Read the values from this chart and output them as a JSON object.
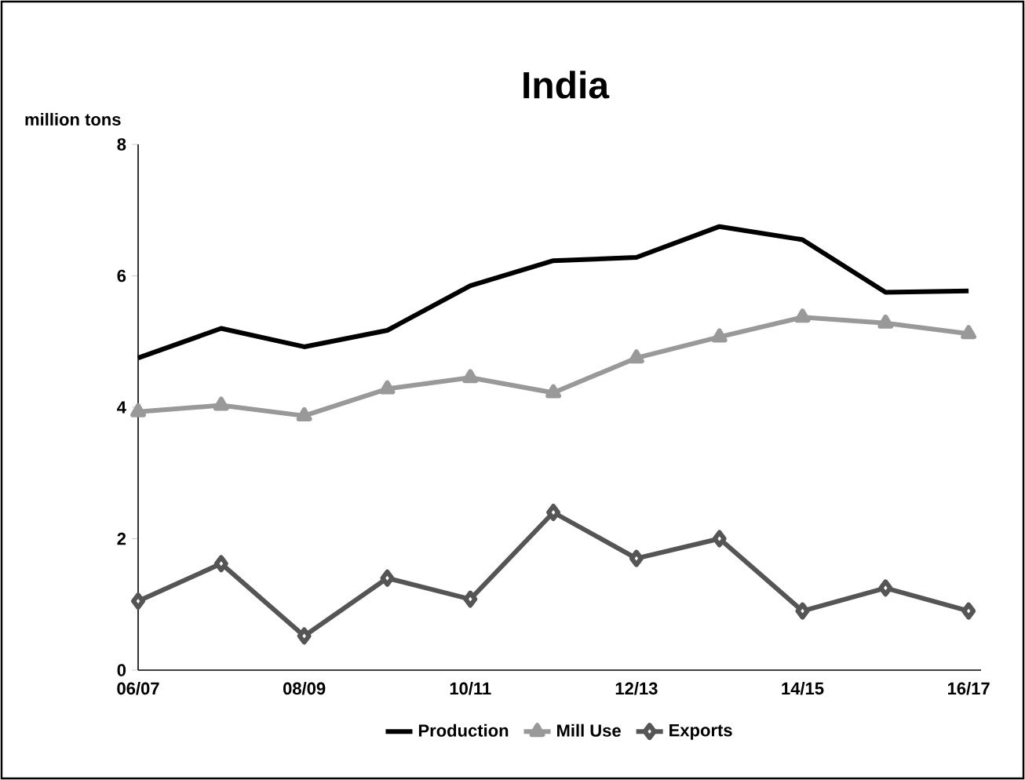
{
  "chart_data": {
    "type": "line",
    "title": "India",
    "ylabel": "million tons",
    "categories": [
      "06/07",
      null,
      "08/09",
      null,
      "10/11",
      null,
      "12/13",
      null,
      "14/15",
      null,
      "16/17"
    ],
    "ylim": [
      0,
      8
    ],
    "yticks": [
      0,
      2,
      4,
      6,
      8
    ],
    "grid": false,
    "legend": "bottom",
    "line_style": "solid",
    "series": [
      {
        "name": "Production",
        "color": "#000000",
        "marker": "none",
        "values": [
          4.75,
          5.2,
          4.92,
          5.17,
          5.85,
          6.23,
          6.28,
          6.75,
          6.55,
          5.75,
          5.77
        ]
      },
      {
        "name": "Mill Use",
        "color": "#999999",
        "marker": "triangle",
        "values": [
          3.93,
          4.03,
          3.87,
          4.28,
          4.45,
          4.22,
          4.75,
          5.07,
          5.37,
          5.28,
          5.12
        ]
      },
      {
        "name": "Exports",
        "color": "#555555",
        "marker": "diamond",
        "values": [
          1.05,
          1.62,
          0.52,
          1.4,
          1.08,
          2.4,
          1.7,
          2.0,
          0.9,
          1.25,
          0.9
        ]
      }
    ]
  }
}
